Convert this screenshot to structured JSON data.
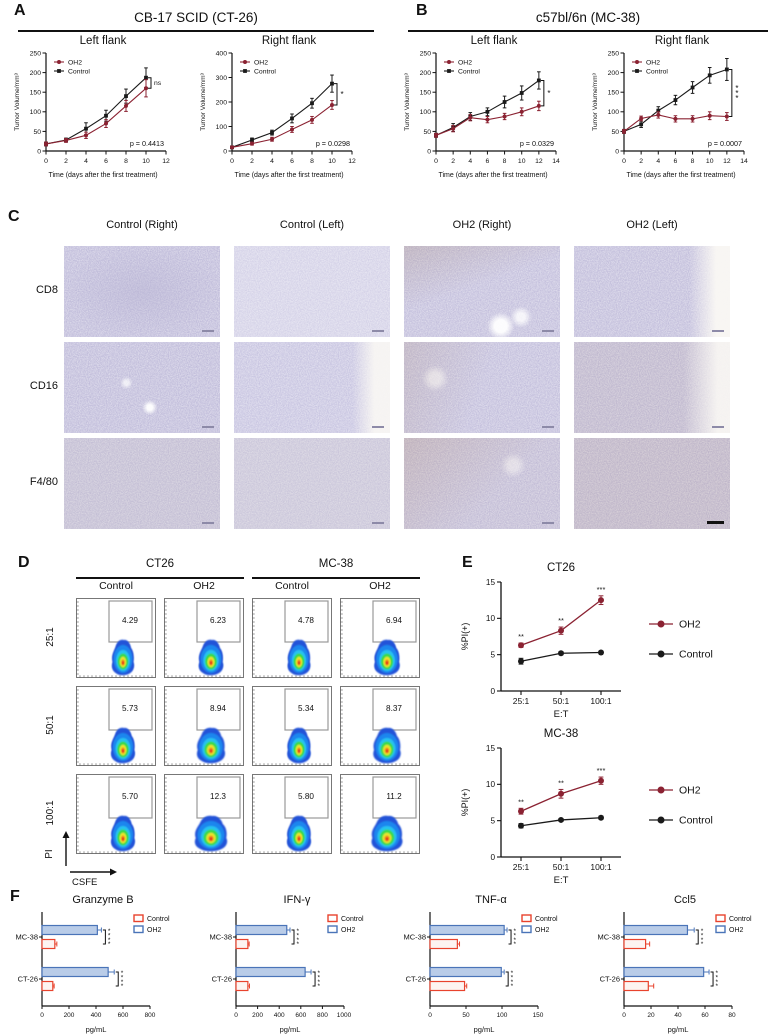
{
  "panels": {
    "a": "A",
    "b": "B",
    "c": "C",
    "d": "D",
    "e": "E",
    "f": "F"
  },
  "colors": {
    "oh2": "#8b2232",
    "control": "#1a1a1a",
    "f_red": "#e8432d",
    "f_blue": "#4a74b8",
    "f_blue_fill": "#b9cce8",
    "f_red_fill": "#fdf4f1",
    "ihc_base": "#c6c2de"
  },
  "panel_a": {
    "title": "CB-17 SCID (CT-26)"
  },
  "panel_b": {
    "title": "c57bl/6n (MC-38)"
  },
  "panel_c": {
    "columns": [
      "Control (Right)",
      "Control (Left)",
      "OH2 (Right)",
      "OH2 (Left)"
    ],
    "rows": [
      "CD8",
      "CD16",
      "F4/80"
    ]
  },
  "chart_data": [
    {
      "panel": "A",
      "type": "line",
      "title": "Left flank",
      "group": "CB-17 SCID (CT-26)",
      "xlabel": "Time (days after the first treatment)",
      "ylabel": "Tumor Volume/mm³",
      "x": [
        0,
        2,
        4,
        6,
        8,
        10
      ],
      "xlim": [
        0,
        12
      ],
      "xticks": [
        0,
        2,
        4,
        6,
        8,
        10,
        12
      ],
      "ylim": [
        0,
        250
      ],
      "yticks": [
        0,
        50,
        100,
        150,
        200,
        250
      ],
      "series": [
        {
          "name": "OH2",
          "color": "#8b2232",
          "values": [
            18,
            27,
            40,
            70,
            115,
            160
          ],
          "errors": [
            5,
            5,
            8,
            10,
            14,
            22
          ]
        },
        {
          "name": "Control",
          "color": "#1a1a1a",
          "values": [
            18,
            28,
            57,
            90,
            140,
            187
          ],
          "errors": [
            5,
            5,
            15,
            14,
            18,
            25
          ]
        }
      ],
      "sig": "ns",
      "p_label": "p = 0.4413"
    },
    {
      "panel": "A",
      "type": "line",
      "title": "Right flank",
      "group": "CB-17 SCID (CT-26)",
      "xlabel": "Time (days after the first treatment)",
      "ylabel": "Tumor Volume/mm³",
      "x": [
        0,
        2,
        4,
        6,
        8,
        10
      ],
      "xlim": [
        0,
        12
      ],
      "xticks": [
        0,
        2,
        4,
        6,
        8,
        10,
        12
      ],
      "ylim": [
        0,
        400
      ],
      "yticks": [
        0,
        100,
        200,
        300,
        400
      ],
      "series": [
        {
          "name": "OH2",
          "color": "#8b2232",
          "values": [
            15,
            30,
            48,
            88,
            127,
            188
          ],
          "errors": [
            4,
            6,
            8,
            12,
            14,
            18
          ]
        },
        {
          "name": "Control",
          "color": "#1a1a1a",
          "values": [
            15,
            45,
            75,
            133,
            195,
            275
          ],
          "errors": [
            4,
            8,
            10,
            18,
            20,
            35
          ]
        }
      ],
      "sig": "*",
      "p_label": "p = 0.0298"
    },
    {
      "panel": "B",
      "type": "line",
      "title": "Left flank",
      "group": "c57bl/6n (MC-38)",
      "xlabel": "Time (days after the first treatment)",
      "ylabel": "Tumor Volume/mm³",
      "x": [
        0,
        2,
        4,
        6,
        8,
        10,
        12
      ],
      "xlim": [
        0,
        14
      ],
      "xticks": [
        0,
        2,
        4,
        6,
        8,
        10,
        12,
        14
      ],
      "ylim": [
        0,
        250
      ],
      "yticks": [
        0,
        50,
        100,
        150,
        200,
        250
      ],
      "series": [
        {
          "name": "OH2",
          "color": "#8b2232",
          "values": [
            40,
            57,
            85,
            80,
            88,
            100,
            115
          ],
          "errors": [
            5,
            8,
            8,
            8,
            8,
            10,
            12
          ]
        },
        {
          "name": "Control",
          "color": "#1a1a1a",
          "values": [
            40,
            60,
            88,
            100,
            125,
            148,
            180
          ],
          "errors": [
            5,
            10,
            10,
            10,
            15,
            18,
            22
          ]
        }
      ],
      "sig": "*",
      "p_label": "p = 0.0329"
    },
    {
      "panel": "B",
      "type": "line",
      "title": "Right flank",
      "group": "c57bl/6n (MC-38)",
      "xlabel": "Time (days after the first treatment)",
      "ylabel": "Tumor Volume/mm³",
      "x": [
        0,
        2,
        4,
        6,
        8,
        10,
        12
      ],
      "xlim": [
        0,
        14
      ],
      "xticks": [
        0,
        2,
        4,
        6,
        8,
        10,
        12,
        14
      ],
      "ylim": [
        0,
        250
      ],
      "yticks": [
        0,
        50,
        100,
        150,
        200,
        250
      ],
      "series": [
        {
          "name": "OH2",
          "color": "#8b2232",
          "values": [
            50,
            83,
            92,
            82,
            82,
            90,
            88
          ],
          "errors": [
            5,
            6,
            8,
            8,
            8,
            10,
            10
          ]
        },
        {
          "name": "Control",
          "color": "#1a1a1a",
          "values": [
            50,
            68,
            103,
            130,
            162,
            193,
            208
          ],
          "errors": [
            5,
            8,
            10,
            12,
            15,
            20,
            28
          ]
        }
      ],
      "sig": "***",
      "p_label": "p = 0.0007"
    },
    {
      "panel": "E",
      "type": "line",
      "title": "CT26",
      "xlabel": "E:T",
      "ylabel": "%PI(+)",
      "categories": [
        "25:1",
        "50:1",
        "100:1"
      ],
      "ylim": [
        0,
        15
      ],
      "yticks": [
        0,
        5,
        10,
        15
      ],
      "series": [
        {
          "name": "OH2",
          "color": "#8b2232",
          "values": [
            6.3,
            8.3,
            12.5
          ],
          "errors": [
            0.3,
            0.5,
            0.6
          ]
        },
        {
          "name": "Control",
          "color": "#1a1a1a",
          "values": [
            4.1,
            5.2,
            5.3
          ],
          "errors": [
            0.4,
            0.2,
            0.2
          ]
        }
      ],
      "point_sig": [
        "**",
        "**",
        "***"
      ]
    },
    {
      "panel": "E",
      "type": "line",
      "title": "MC-38",
      "xlabel": "E:T",
      "ylabel": "%PI(+)",
      "categories": [
        "25:1",
        "50:1",
        "100:1"
      ],
      "ylim": [
        0,
        15
      ],
      "yticks": [
        0,
        5,
        10,
        15
      ],
      "series": [
        {
          "name": "OH2",
          "color": "#8b2232",
          "values": [
            6.3,
            8.7,
            10.5
          ],
          "errors": [
            0.4,
            0.6,
            0.5
          ]
        },
        {
          "name": "Control",
          "color": "#1a1a1a",
          "values": [
            4.3,
            5.1,
            5.4
          ],
          "errors": [
            0.3,
            0.2,
            0.2
          ]
        }
      ],
      "point_sig": [
        "**",
        "**",
        "***"
      ]
    },
    {
      "panel": "F",
      "type": "bar",
      "title": "Granzyme B",
      "xlabel": "pg/mL",
      "categories": [
        "MC-38",
        "CT-26"
      ],
      "xlim": [
        0,
        800
      ],
      "xticks": [
        0,
        200,
        400,
        600,
        800
      ],
      "series": [
        {
          "name": "Control",
          "color": "#e8432d",
          "fill": "#fdf4f1",
          "values": [
            95,
            80
          ],
          "errors": [
            15,
            10
          ]
        },
        {
          "name": "OH2",
          "color": "#4a74b8",
          "fill": "#b9cce8",
          "values": [
            410,
            490
          ],
          "errors": [
            30,
            45
          ]
        }
      ],
      "sig": [
        "****",
        "****"
      ]
    },
    {
      "panel": "F",
      "type": "bar",
      "title": "IFN-γ",
      "xlabel": "pg/mL",
      "categories": [
        "MC-38",
        "CT-26"
      ],
      "xlim": [
        0,
        1000
      ],
      "xticks": [
        0,
        200,
        400,
        600,
        800,
        1000
      ],
      "series": [
        {
          "name": "Control",
          "color": "#e8432d",
          "fill": "#fdf4f1",
          "values": [
            110,
            110
          ],
          "errors": [
            12,
            15
          ]
        },
        {
          "name": "OH2",
          "color": "#4a74b8",
          "fill": "#b9cce8",
          "values": [
            470,
            640
          ],
          "errors": [
            30,
            55
          ]
        }
      ],
      "sig": [
        "****",
        "****"
      ]
    },
    {
      "panel": "F",
      "type": "bar",
      "title": "TNF-α",
      "xlabel": "pg/mL",
      "categories": [
        "MC-38",
        "CT-26"
      ],
      "xlim": [
        0,
        150
      ],
      "xticks": [
        0,
        50,
        100,
        150
      ],
      "series": [
        {
          "name": "Control",
          "color": "#e8432d",
          "fill": "#fdf4f1",
          "values": [
            38,
            48
          ],
          "errors": [
            3,
            3
          ]
        },
        {
          "name": "OH2",
          "color": "#4a74b8",
          "fill": "#b9cce8",
          "values": [
            103,
            99
          ],
          "errors": [
            4,
            4
          ]
        }
      ],
      "sig": [
        "****",
        "****"
      ]
    },
    {
      "panel": "F",
      "type": "bar",
      "title": "Ccl5",
      "xlabel": "pg/mL",
      "categories": [
        "MC-38",
        "CT-26"
      ],
      "xlim": [
        0,
        80
      ],
      "xticks": [
        0,
        20,
        40,
        60,
        80
      ],
      "series": [
        {
          "name": "Control",
          "color": "#e8432d",
          "fill": "#fdf4f1",
          "values": [
            16,
            18
          ],
          "errors": [
            3,
            4
          ]
        },
        {
          "name": "OH2",
          "color": "#4a74b8",
          "fill": "#b9cce8",
          "values": [
            47,
            59
          ],
          "errors": [
            5,
            4
          ]
        }
      ],
      "sig": [
        "****",
        "****"
      ]
    },
    {
      "panel": "D",
      "type": "flow",
      "col_groups": [
        "CT26",
        "MC-38"
      ],
      "columns": [
        "Control",
        "OH2",
        "Control",
        "OH2"
      ],
      "rows": [
        "25:1",
        "50:1",
        "100:1"
      ],
      "values": [
        [
          "4.29",
          "6.23",
          "4.78",
          "6.94"
        ],
        [
          "5.73",
          "8.94",
          "5.34",
          "8.37"
        ],
        [
          "5.70",
          "12.3",
          "5.80",
          "11.2"
        ]
      ],
      "xlabel": "CSFE",
      "ylabel": "PI"
    }
  ]
}
